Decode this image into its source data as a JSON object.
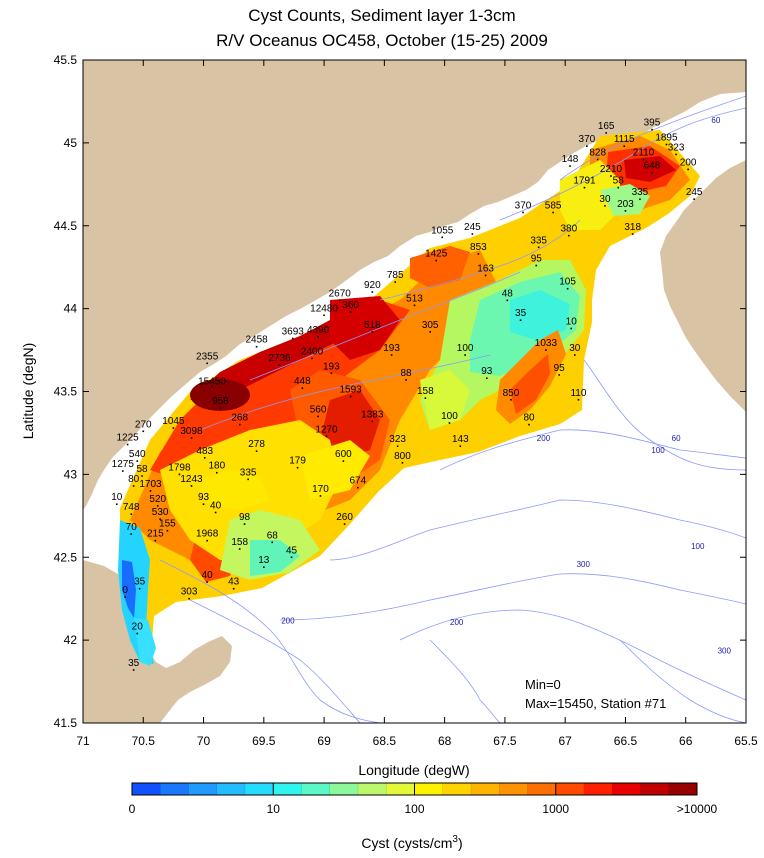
{
  "title_line1": "Cyst Counts, Sediment layer 1-3cm",
  "title_line2": "R/V Oceanus OC458, October (15-25) 2009",
  "x_axis_label": "Longitude (degW)",
  "y_axis_label": "Latitude (degN)",
  "x_ticks": [
    "71",
    "70.5",
    "70",
    "69.5",
    "69",
    "68.5",
    "68",
    "67.5",
    "67",
    "66.5",
    "66",
    "65.5"
  ],
  "y_ticks": [
    "45.5",
    "45",
    "44.5",
    "44",
    "43.5",
    "43",
    "42.5",
    "42",
    "41.5"
  ],
  "stats_min": "Min=0",
  "stats_max": "Max=15450, Station #71",
  "colorbar": {
    "label": "Cyst (cysts/cm3)",
    "tick_labels": [
      "0",
      "10",
      "100",
      "1000",
      ">10000"
    ],
    "colors": [
      "#1050ff",
      "#1a78ff",
      "#1f9bff",
      "#22bcff",
      "#24dcff",
      "#2ff5ee",
      "#5cf7c6",
      "#8cf89a",
      "#bcf86c",
      "#e4f83a",
      "#fff200",
      "#ffd400",
      "#ffb400",
      "#ff9200",
      "#ff6e00",
      "#ff4a00",
      "#ff2000",
      "#e80000",
      "#c00000",
      "#980000"
    ]
  },
  "isobath_labels": [
    {
      "text": "60",
      "lon": 65.75,
      "lat": 45.12
    },
    {
      "text": "200",
      "lon": 67.18,
      "lat": 43.2
    },
    {
      "text": "60",
      "lon": 66.08,
      "lat": 43.2
    },
    {
      "text": "100",
      "lon": 66.23,
      "lat": 43.13
    },
    {
      "text": "100",
      "lon": 65.9,
      "lat": 42.55
    },
    {
      "text": "300",
      "lon": 66.85,
      "lat": 42.44
    },
    {
      "text": "200",
      "lon": 69.3,
      "lat": 42.1
    },
    {
      "text": "200",
      "lon": 67.9,
      "lat": 42.09
    },
    {
      "text": "300",
      "lon": 65.68,
      "lat": 41.92
    }
  ],
  "stations": [
    {
      "label": "0",
      "lon": 70.65,
      "lat": 42.26
    },
    {
      "label": "35",
      "lon": 70.53,
      "lat": 42.31
    },
    {
      "label": "20",
      "lon": 70.55,
      "lat": 42.04
    },
    {
      "label": "35",
      "lon": 70.58,
      "lat": 41.82
    },
    {
      "label": "10",
      "lon": 70.72,
      "lat": 42.82
    },
    {
      "label": "748",
      "lon": 70.6,
      "lat": 42.76
    },
    {
      "label": "70",
      "lon": 70.6,
      "lat": 42.64
    },
    {
      "label": "215",
      "lon": 70.4,
      "lat": 42.6
    },
    {
      "label": "155",
      "lon": 70.3,
      "lat": 42.66
    },
    {
      "label": "530",
      "lon": 70.36,
      "lat": 42.73
    },
    {
      "label": "520",
      "lon": 70.38,
      "lat": 42.81
    },
    {
      "label": "1703",
      "lon": 70.44,
      "lat": 42.9
    },
    {
      "label": "80",
      "lon": 70.58,
      "lat": 42.93
    },
    {
      "label": "58",
      "lon": 70.51,
      "lat": 42.99
    },
    {
      "label": "1275",
      "lon": 70.67,
      "lat": 43.02
    },
    {
      "label": "540",
      "lon": 70.55,
      "lat": 43.08
    },
    {
      "label": "1225",
      "lon": 70.63,
      "lat": 43.18
    },
    {
      "label": "270",
      "lon": 70.5,
      "lat": 43.26
    },
    {
      "label": "1045",
      "lon": 70.25,
      "lat": 43.28
    },
    {
      "label": "3098",
      "lon": 70.1,
      "lat": 43.22
    },
    {
      "label": "1798",
      "lon": 70.2,
      "lat": 43.0
    },
    {
      "label": "1243",
      "lon": 70.1,
      "lat": 42.93
    },
    {
      "label": "483",
      "lon": 69.99,
      "lat": 43.1
    },
    {
      "label": "180",
      "lon": 69.89,
      "lat": 43.01
    },
    {
      "label": "93",
      "lon": 70.0,
      "lat": 42.82
    },
    {
      "label": "40",
      "lon": 69.9,
      "lat": 42.77
    },
    {
      "label": "1968",
      "lon": 69.97,
      "lat": 42.6
    },
    {
      "label": "40",
      "lon": 69.97,
      "lat": 42.35
    },
    {
      "label": "303",
      "lon": 70.12,
      "lat": 42.25
    },
    {
      "label": "43",
      "lon": 69.75,
      "lat": 42.31
    },
    {
      "label": "158",
      "lon": 69.7,
      "lat": 42.55
    },
    {
      "label": "98",
      "lon": 69.66,
      "lat": 42.7
    },
    {
      "label": "13",
      "lon": 69.5,
      "lat": 42.44
    },
    {
      "label": "68",
      "lon": 69.43,
      "lat": 42.59
    },
    {
      "label": "45",
      "lon": 69.27,
      "lat": 42.5
    },
    {
      "label": "335",
      "lon": 69.63,
      "lat": 42.97
    },
    {
      "label": "278",
      "lon": 69.56,
      "lat": 43.14
    },
    {
      "label": "268",
      "lon": 69.7,
      "lat": 43.3
    },
    {
      "label": "958",
      "lon": 69.86,
      "lat": 43.4
    },
    {
      "label": "15450",
      "lon": 69.93,
      "lat": 43.53
    },
    {
      "label": "2355",
      "lon": 69.97,
      "lat": 43.67
    },
    {
      "label": "2458",
      "lon": 69.56,
      "lat": 43.77
    },
    {
      "label": "3693",
      "lon": 69.26,
      "lat": 43.82
    },
    {
      "label": "4390",
      "lon": 69.05,
      "lat": 43.83
    },
    {
      "label": "2736",
      "lon": 69.37,
      "lat": 43.66
    },
    {
      "label": "2400",
      "lon": 69.1,
      "lat": 43.7
    },
    {
      "label": "448",
      "lon": 69.18,
      "lat": 43.52
    },
    {
      "label": "193",
      "lon": 68.94,
      "lat": 43.61
    },
    {
      "label": "12480",
      "lon": 69.0,
      "lat": 43.96
    },
    {
      "label": "360",
      "lon": 68.78,
      "lat": 43.98
    },
    {
      "label": "518",
      "lon": 68.6,
      "lat": 43.86
    },
    {
      "label": "2670",
      "lon": 68.87,
      "lat": 44.05
    },
    {
      "label": "920",
      "lon": 68.6,
      "lat": 44.1
    },
    {
      "label": "785",
      "lon": 68.41,
      "lat": 44.16
    },
    {
      "label": "513",
      "lon": 68.25,
      "lat": 44.02
    },
    {
      "label": "193",
      "lon": 68.44,
      "lat": 43.72
    },
    {
      "label": "305",
      "lon": 68.12,
      "lat": 43.86
    },
    {
      "label": "1593",
      "lon": 68.78,
      "lat": 43.47
    },
    {
      "label": "560",
      "lon": 69.05,
      "lat": 43.35
    },
    {
      "label": "1270",
      "lon": 68.98,
      "lat": 43.23
    },
    {
      "label": "1383",
      "lon": 68.6,
      "lat": 43.32
    },
    {
      "label": "600",
      "lon": 68.84,
      "lat": 43.08
    },
    {
      "label": "674",
      "lon": 68.72,
      "lat": 42.92
    },
    {
      "label": "179",
      "lon": 69.22,
      "lat": 43.04
    },
    {
      "label": "170",
      "lon": 69.03,
      "lat": 42.87
    },
    {
      "label": "260",
      "lon": 68.83,
      "lat": 42.7
    },
    {
      "label": "323",
      "lon": 68.39,
      "lat": 43.17
    },
    {
      "label": "800",
      "lon": 68.35,
      "lat": 43.07
    },
    {
      "label": "88",
      "lon": 68.32,
      "lat": 43.57
    },
    {
      "label": "158",
      "lon": 68.16,
      "lat": 43.46
    },
    {
      "label": "100",
      "lon": 67.96,
      "lat": 43.31
    },
    {
      "label": "143",
      "lon": 67.87,
      "lat": 43.17
    },
    {
      "label": "100",
      "lon": 67.83,
      "lat": 43.72
    },
    {
      "label": "93",
      "lon": 67.65,
      "lat": 43.58
    },
    {
      "label": "850",
      "lon": 67.45,
      "lat": 43.45
    },
    {
      "label": "80",
      "lon": 67.3,
      "lat": 43.3
    },
    {
      "label": "95",
      "lon": 67.05,
      "lat": 43.6
    },
    {
      "label": "110",
      "lon": 66.89,
      "lat": 43.45
    },
    {
      "label": "1033",
      "lon": 67.16,
      "lat": 43.75
    },
    {
      "label": "30",
      "lon": 66.92,
      "lat": 43.72
    },
    {
      "label": "10",
      "lon": 66.95,
      "lat": 43.88
    },
    {
      "label": "35",
      "lon": 67.37,
      "lat": 43.93
    },
    {
      "label": "48",
      "lon": 67.48,
      "lat": 44.05
    },
    {
      "label": "105",
      "lon": 66.98,
      "lat": 44.12
    },
    {
      "label": "163",
      "lon": 67.66,
      "lat": 44.2
    },
    {
      "label": "95",
      "lon": 67.24,
      "lat": 44.26
    },
    {
      "label": "853",
      "lon": 67.72,
      "lat": 44.33
    },
    {
      "label": "1425",
      "lon": 68.07,
      "lat": 44.29
    },
    {
      "label": "1055",
      "lon": 68.02,
      "lat": 44.43
    },
    {
      "label": "245",
      "lon": 67.77,
      "lat": 44.45
    },
    {
      "label": "335",
      "lon": 67.22,
      "lat": 44.37
    },
    {
      "label": "370",
      "lon": 67.35,
      "lat": 44.58
    },
    {
      "label": "585",
      "lon": 67.1,
      "lat": 44.58
    },
    {
      "label": "380",
      "lon": 66.97,
      "lat": 44.44
    },
    {
      "label": "318",
      "lon": 66.44,
      "lat": 44.45
    },
    {
      "label": "203",
      "lon": 66.5,
      "lat": 44.59
    },
    {
      "label": "335",
      "lon": 66.38,
      "lat": 44.66
    },
    {
      "label": "30",
      "lon": 66.67,
      "lat": 44.62
    },
    {
      "label": "58",
      "lon": 66.56,
      "lat": 44.73
    },
    {
      "label": "1791",
      "lon": 66.84,
      "lat": 44.73
    },
    {
      "label": "2210",
      "lon": 66.62,
      "lat": 44.8
    },
    {
      "label": "648",
      "lon": 66.28,
      "lat": 44.82
    },
    {
      "label": "148",
      "lon": 66.96,
      "lat": 44.86
    },
    {
      "label": "828",
      "lon": 66.73,
      "lat": 44.9
    },
    {
      "label": "2110",
      "lon": 66.35,
      "lat": 44.9
    },
    {
      "label": "370",
      "lon": 66.82,
      "lat": 44.98
    },
    {
      "label": "1115",
      "lon": 66.51,
      "lat": 44.98
    },
    {
      "label": "165",
      "lon": 66.66,
      "lat": 45.06
    },
    {
      "label": "395",
      "lon": 66.28,
      "lat": 45.08
    },
    {
      "label": "1895",
      "lon": 66.16,
      "lat": 44.99
    },
    {
      "label": "323",
      "lon": 66.08,
      "lat": 44.93
    },
    {
      "label": "200",
      "lon": 65.98,
      "lat": 44.84
    },
    {
      "label": "245",
      "lon": 65.93,
      "lat": 44.66
    }
  ]
}
